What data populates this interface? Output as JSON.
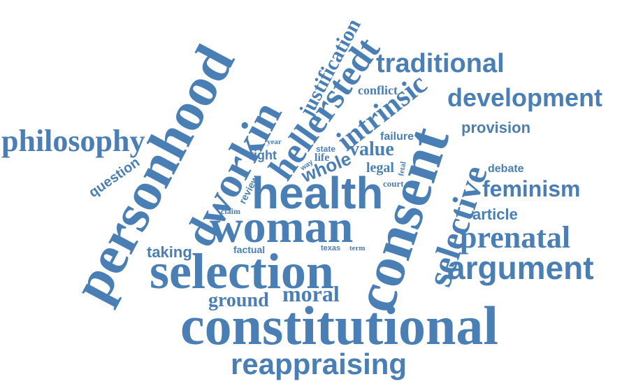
{
  "word_color": "#4a7fb5",
  "background": "#ffffff",
  "words": [
    {
      "text": "constitutional"
    },
    {
      "text": "reappraising"
    },
    {
      "text": "selection"
    },
    {
      "text": "woman"
    },
    {
      "text": "health"
    },
    {
      "text": "consent"
    },
    {
      "text": "personhood"
    },
    {
      "text": "dworkin"
    },
    {
      "text": "hellerstedt"
    },
    {
      "text": "selective"
    },
    {
      "text": "argument"
    },
    {
      "text": "prenatal"
    },
    {
      "text": "philosophy"
    },
    {
      "text": "traditional"
    },
    {
      "text": "development"
    },
    {
      "text": "intrinsic"
    },
    {
      "text": "justification"
    },
    {
      "text": "feminism"
    },
    {
      "text": "ground"
    },
    {
      "text": "moral"
    },
    {
      "text": "taking"
    },
    {
      "text": "value"
    },
    {
      "text": "whole"
    },
    {
      "text": "provision"
    },
    {
      "text": "article"
    },
    {
      "text": "question"
    },
    {
      "text": "conflict"
    },
    {
      "text": "debate"
    },
    {
      "text": "failure"
    },
    {
      "text": "right"
    },
    {
      "text": "legal"
    },
    {
      "text": "factual"
    },
    {
      "text": "life"
    },
    {
      "text": "court"
    },
    {
      "text": "review"
    },
    {
      "text": "claim"
    },
    {
      "text": "state"
    },
    {
      "text": "texas"
    },
    {
      "text": "term"
    },
    {
      "text": "year"
    },
    {
      "text": "way"
    },
    {
      "text": "fetal"
    }
  ]
}
